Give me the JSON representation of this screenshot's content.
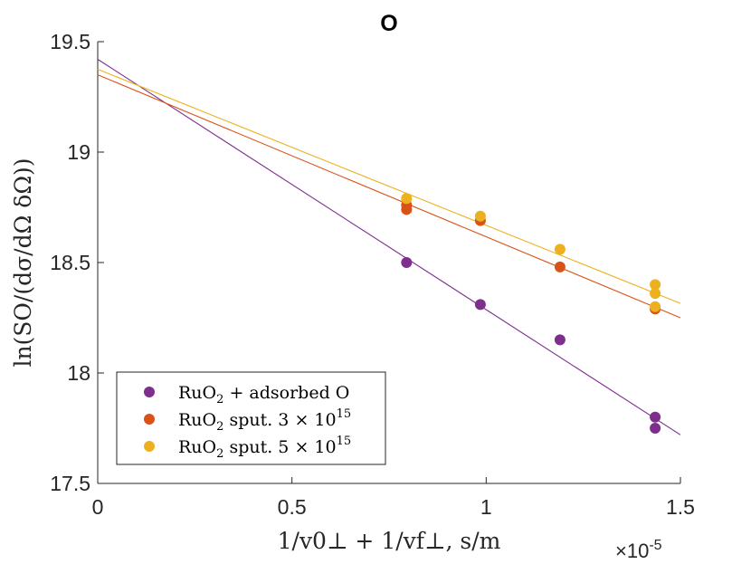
{
  "chart_data": {
    "type": "scatter",
    "title": "O",
    "xlabel": "1/v0⊥ + 1/vf⊥, s/m",
    "ylabel": "ln(SO/(dσ/dΩ δΩ))",
    "x_multiplier": "×10",
    "x_multiplier_exp": "-5",
    "xlim": [
      0,
      1.5
    ],
    "ylim": [
      17.5,
      19.5
    ],
    "xticks": [
      "0",
      "0.5",
      "1",
      "1.5"
    ],
    "yticks": [
      "17.5",
      "18",
      "18.5",
      "19",
      "19.5"
    ],
    "legend_position": "lower-left",
    "series": [
      {
        "name": "RuO2 + adsorbed O",
        "legend_main": "RuO",
        "legend_sub": "2",
        "legend_rest": " + adsorbed O",
        "legend_sup": "",
        "color": "#7E2F8E",
        "points": [
          [
            0.795,
            18.5
          ],
          [
            0.985,
            18.31
          ],
          [
            1.19,
            18.15
          ],
          [
            1.435,
            17.8
          ],
          [
            1.435,
            17.75
          ]
        ],
        "fit": {
          "x0": 0,
          "y0": 19.42,
          "x1": 1.5,
          "y1": 17.72
        }
      },
      {
        "name": "RuO2 sput. 3 × 10^15",
        "legend_main": "RuO",
        "legend_sub": "2",
        "legend_rest": " sput.  3 × 10",
        "legend_sup": "15",
        "color": "#D95319",
        "points": [
          [
            0.795,
            18.76
          ],
          [
            0.795,
            18.74
          ],
          [
            0.985,
            18.69
          ],
          [
            1.19,
            18.48
          ],
          [
            1.435,
            18.29
          ]
        ],
        "fit": {
          "x0": 0,
          "y0": 19.35,
          "x1": 1.5,
          "y1": 18.25
        }
      },
      {
        "name": "RuO2 sput. 5 × 10^15",
        "legend_main": "RuO",
        "legend_sub": "2",
        "legend_rest": " sput.  5 × 10",
        "legend_sup": "15",
        "color": "#EDB120",
        "points": [
          [
            0.795,
            18.79
          ],
          [
            0.985,
            18.71
          ],
          [
            1.19,
            18.56
          ],
          [
            1.435,
            18.4
          ],
          [
            1.435,
            18.36
          ],
          [
            1.435,
            18.3
          ]
        ],
        "fit": {
          "x0": 0,
          "y0": 19.375,
          "x1": 1.5,
          "y1": 18.315
        }
      }
    ]
  }
}
